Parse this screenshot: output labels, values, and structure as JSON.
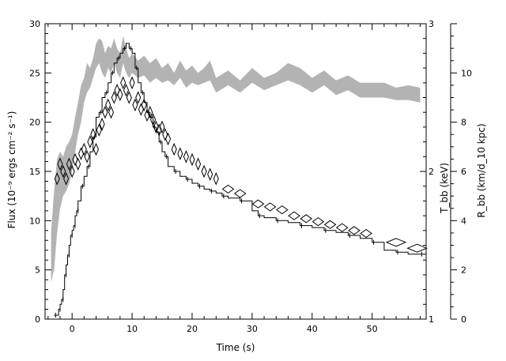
{
  "chart_data": {
    "type": "line",
    "title": "",
    "xlabel": "Time (s)",
    "ylabel_left": "Flux (10⁻⁹ ergs cm⁻² s⁻¹)",
    "ylabel_right_1": "T_bb (keV)",
    "ylabel_right_2": "R_bb (km/d_10 kpc)",
    "xlim": [
      -4.5,
      59
    ],
    "ylim_flux": [
      0,
      30
    ],
    "ylim_kT": [
      1,
      3
    ],
    "ylim_R": [
      0,
      12
    ],
    "axes": {
      "x_ticks": [
        "0",
        "10",
        "20",
        "30",
        "40",
        "50"
      ],
      "flux_ticks": [
        "0",
        "5",
        "10",
        "15",
        "20",
        "25",
        "30"
      ],
      "kT_ticks": [
        "1",
        "2",
        "3"
      ],
      "R_ticks": [
        "0",
        "2",
        "4",
        "6",
        "8",
        "10"
      ]
    },
    "series": [
      {
        "name": "",
        "kind": "flux-histogram",
        "x": [
          -3.0,
          -2.5,
          -2.25,
          -2.0,
          -1.75,
          -1.5,
          -1.25,
          -1.0,
          -0.75,
          -0.5,
          -0.25,
          0.0,
          0.25,
          0.5,
          0.75,
          1.0,
          1.5,
          2.0,
          2.5,
          3.0,
          3.5,
          4.0,
          4.5,
          5.0,
          5.5,
          6.0,
          6.5,
          7.0,
          7.5,
          8.0,
          8.5,
          9.0,
          9.5,
          10.0,
          10.5,
          11.0,
          11.5,
          12.0,
          12.5,
          13.0,
          13.5,
          14.0,
          14.5,
          15.0,
          15.5,
          16.0,
          17.0,
          18.0,
          19.0,
          20.0,
          21.0,
          22.0,
          23.0,
          24.0,
          25.0,
          26.0,
          28.0,
          30.0,
          31.0,
          32.0,
          34.0,
          36.0,
          38.0,
          40.0,
          42.0,
          44.0,
          46.0,
          48.0,
          50.0,
          52.0,
          54.0,
          56.0,
          58.0
        ],
        "values": [
          0.4,
          0.4,
          1.0,
          1.5,
          2.0,
          3.0,
          4.5,
          5.5,
          6.5,
          7.5,
          8.5,
          9.0,
          9.5,
          10.5,
          11.0,
          12.0,
          13.5,
          14.5,
          15.5,
          17.0,
          18.5,
          20.5,
          21.0,
          22.5,
          23.0,
          24.0,
          25.0,
          26.0,
          26.5,
          27.0,
          27.5,
          28.0,
          27.5,
          27.0,
          25.5,
          24.0,
          23.0,
          22.0,
          21.0,
          20.5,
          19.5,
          19.0,
          18.0,
          17.0,
          16.5,
          15.5,
          15.0,
          14.5,
          14.2,
          13.8,
          13.5,
          13.2,
          13.0,
          12.8,
          12.5,
          12.3,
          12.0,
          11.0,
          10.5,
          10.3,
          10.0,
          9.8,
          9.5,
          9.3,
          9.0,
          8.8,
          8.5,
          8.2,
          7.8,
          7.0,
          6.8,
          6.6,
          6.6
        ]
      },
      {
        "name": "",
        "kind": "temperature-diamonds",
        "x": [
          -2.5,
          -2.0,
          -1.5,
          -1.0,
          -0.5,
          0.0,
          0.5,
          1.0,
          1.5,
          2.0,
          2.5,
          3.0,
          3.5,
          4.0,
          4.5,
          5.0,
          5.5,
          6.0,
          6.5,
          7.0,
          7.5,
          8.0,
          8.5,
          9.0,
          9.5,
          10.0,
          10.5,
          11.0,
          11.5,
          12.0,
          12.5,
          13.0,
          13.5,
          14.0,
          14.5,
          15.0,
          15.5,
          16.0,
          17.0,
          18.0,
          19.0,
          20.0,
          21.0,
          22.0,
          23.0,
          24.0,
          26.0,
          28.0,
          31.0,
          33.0,
          35.0,
          37.0,
          39.0,
          41.0,
          43.0,
          45.0,
          47.0,
          49.0,
          54.0,
          57.5
        ],
        "values": [
          1.95,
          2.05,
          2.0,
          1.95,
          2.05,
          2.0,
          2.08,
          2.05,
          2.12,
          2.15,
          2.1,
          2.2,
          2.25,
          2.15,
          2.28,
          2.32,
          2.4,
          2.45,
          2.4,
          2.5,
          2.55,
          2.52,
          2.6,
          2.55,
          2.5,
          2.6,
          2.45,
          2.5,
          2.42,
          2.45,
          2.38,
          2.4,
          2.35,
          2.3,
          2.28,
          2.3,
          2.25,
          2.22,
          2.15,
          2.12,
          2.1,
          2.08,
          2.05,
          2.0,
          1.98,
          1.95,
          1.88,
          1.85,
          1.78,
          1.76,
          1.74,
          1.7,
          1.68,
          1.66,
          1.64,
          1.62,
          1.6,
          1.58,
          1.52,
          1.48
        ]
      },
      {
        "name": "",
        "kind": "radius-band",
        "x": [
          -3.5,
          -3.0,
          -2.5,
          -2.0,
          -1.5,
          -1.0,
          -0.5,
          0.0,
          0.5,
          1.0,
          1.5,
          2.0,
          2.5,
          3.0,
          3.5,
          4.0,
          4.5,
          5.0,
          5.5,
          6.0,
          6.5,
          7.0,
          7.5,
          8.0,
          8.5,
          9.0,
          9.5,
          10.0,
          11.0,
          12.0,
          13.0,
          14.0,
          15.0,
          16.0,
          17.0,
          18.0,
          19.0,
          20.0,
          21.0,
          22.0,
          23.0,
          24.0,
          26.0,
          28.0,
          30.0,
          32.0,
          34.0,
          36.0,
          38.0,
          40.0,
          42.0,
          44.0,
          46.0,
          48.0,
          50.0,
          52.0,
          54.0,
          56.0,
          58.0
        ],
        "upper": [
          3.5,
          5.2,
          6.5,
          6.8,
          6.6,
          7.0,
          7.2,
          7.5,
          8.2,
          8.8,
          9.5,
          9.8,
          10.4,
          10.2,
          10.6,
          11.2,
          11.4,
          11.3,
          10.8,
          11.1,
          11.0,
          11.4,
          11.0,
          10.8,
          11.5,
          11.0,
          10.6,
          10.8,
          10.5,
          10.7,
          10.4,
          10.6,
          10.2,
          10.4,
          10.0,
          10.5,
          10.1,
          10.3,
          10.0,
          10.2,
          10.5,
          9.8,
          10.1,
          9.7,
          10.2,
          9.8,
          10.0,
          10.4,
          10.2,
          9.8,
          10.1,
          9.7,
          9.9,
          9.6,
          9.6,
          9.6,
          9.4,
          9.5,
          9.4
        ],
        "lower": [
          1.5,
          2.0,
          3.5,
          4.5,
          5.0,
          5.2,
          5.5,
          6.0,
          6.8,
          7.5,
          8.0,
          8.8,
          9.2,
          9.4,
          9.8,
          10.2,
          10.4,
          10.0,
          9.8,
          10.2,
          10.0,
          10.4,
          10.0,
          9.8,
          10.4,
          10.0,
          9.8,
          10.0,
          9.8,
          9.9,
          9.6,
          9.8,
          9.6,
          9.7,
          9.5,
          9.8,
          9.4,
          9.6,
          9.5,
          9.6,
          9.7,
          9.2,
          9.5,
          9.2,
          9.6,
          9.3,
          9.5,
          9.7,
          9.5,
          9.2,
          9.5,
          9.1,
          9.3,
          9.0,
          9.0,
          9.0,
          8.9,
          8.9,
          8.8
        ]
      }
    ],
    "grid": false,
    "legend": "none"
  },
  "colors": {
    "band": "#b3b3b3",
    "line": "#000000",
    "background": "#ffffff"
  }
}
